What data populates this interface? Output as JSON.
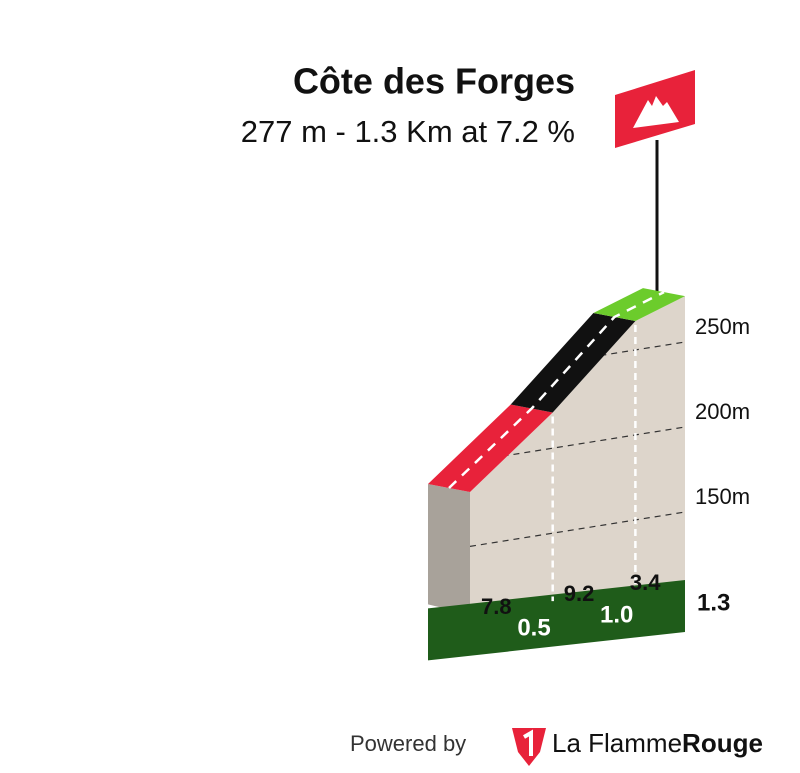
{
  "chart_data": {
    "type": "climb-profile",
    "title": "Côte des Forges",
    "subtitle": "277 m - 1.3 Km at 7.2 %",
    "start_elevation": 182,
    "segments": [
      {
        "gradient": 7.8,
        "end_km": 0.5,
        "end_elevation": 221,
        "color": "#e8223a"
      },
      {
        "gradient": 9.2,
        "end_km": {
          "value": 1,
          "label": "1.0"
        },
        "end_elevation": 267,
        "color": "#111111"
      },
      {
        "gradient": 3.4,
        "end_km": 1.3,
        "end_elevation": 277,
        "color": "#6ccc2c"
      }
    ],
    "xlim": [
      0,
      1.3
    ],
    "ylim": [
      110,
      290
    ],
    "yticks": [
      {
        "value": 150,
        "label": "150m"
      },
      {
        "value": 200,
        "label": "200m"
      },
      {
        "value": 250,
        "label": "250m"
      }
    ],
    "grid": true,
    "footer": {
      "prefix": "Powered by",
      "brand": "La Flamme",
      "brand_bold": "Rouge"
    }
  }
}
